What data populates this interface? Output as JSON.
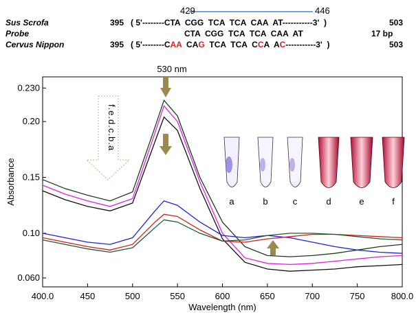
{
  "alignment": {
    "marker_start": 429,
    "marker_end": 446,
    "rows": [
      {
        "name": "Sus Scrofa",
        "start": 395,
        "sequence": [
          {
            "text": "( 5'--------CTA  CGG  TCA  TCA  CAA  AT-----------3'  )",
            "color": "#000000"
          }
        ],
        "end": 503
      },
      {
        "name": "Probe",
        "start": null,
        "sequence": [
          {
            "text": "CTA  CGG  TCA  TCA  CAA  AT",
            "color": "#000000"
          }
        ],
        "end": "17 bp"
      },
      {
        "name": "Cervus Nippon",
        "start": 395,
        "sequence": [
          {
            "text": "( 5'--------C",
            "color": "#000000"
          },
          {
            "text": "AA",
            "color": "#e0201c"
          },
          {
            "text": "  CA",
            "color": "#000000"
          },
          {
            "text": "G",
            "color": "#e0201c"
          },
          {
            "text": "  TCA  TCA  C",
            "color": "#000000"
          },
          {
            "text": "C",
            "color": "#e0201c"
          },
          {
            "text": "A  A",
            "color": "#000000"
          },
          {
            "text": "C",
            "color": "#e0201c"
          },
          {
            "text": "-----------3'  )",
            "color": "#000000"
          }
        ],
        "end": 503
      }
    ]
  },
  "chart_data": {
    "type": "line",
    "x_label": "Wavelength (nm)",
    "y_label": "Absorbance",
    "annotations": [
      "530 nm",
      "f.e.d.c.b.a"
    ],
    "tube_labels": [
      "a",
      "b",
      "c",
      "d",
      "e",
      "f"
    ],
    "x": [
      400,
      425,
      450,
      475,
      500,
      525,
      535,
      550,
      575,
      600,
      625,
      650,
      675,
      700,
      725,
      750,
      775,
      800
    ],
    "series": [
      {
        "color": "#1e3a1e",
        "values": [
          0.148,
          0.14,
          0.134,
          0.129,
          0.137,
          0.195,
          0.219,
          0.205,
          0.15,
          0.11,
          0.088,
          0.08,
          0.079,
          0.08,
          0.082,
          0.085,
          0.088,
          0.09
        ]
      },
      {
        "color": "#e020e0",
        "values": [
          0.143,
          0.135,
          0.129,
          0.124,
          0.131,
          0.19,
          0.214,
          0.2,
          0.146,
          0.1,
          0.078,
          0.073,
          0.072,
          0.073,
          0.075,
          0.077,
          0.079,
          0.08
        ]
      },
      {
        "color": "#111111",
        "values": [
          0.138,
          0.13,
          0.124,
          0.12,
          0.127,
          0.182,
          0.204,
          0.192,
          0.14,
          0.095,
          0.074,
          0.068,
          0.066,
          0.067,
          0.068,
          0.07,
          0.071,
          0.072
        ]
      },
      {
        "color": "#2020e0",
        "values": [
          0.1,
          0.096,
          0.092,
          0.09,
          0.096,
          0.12,
          0.129,
          0.125,
          0.11,
          0.098,
          0.096,
          0.098,
          0.096,
          0.092,
          0.088,
          0.085,
          0.083,
          0.082
        ]
      },
      {
        "color": "#d81c1c",
        "values": [
          0.096,
          0.092,
          0.088,
          0.085,
          0.09,
          0.11,
          0.117,
          0.115,
          0.103,
          0.093,
          0.092,
          0.095,
          0.097,
          0.099,
          0.099,
          0.098,
          0.097,
          0.096
        ]
      },
      {
        "color": "#1e5a2e",
        "values": [
          0.094,
          0.09,
          0.086,
          0.083,
          0.087,
          0.105,
          0.112,
          0.11,
          0.1,
          0.093,
          0.094,
          0.098,
          0.1,
          0.1,
          0.099,
          0.097,
          0.095,
          0.094
        ]
      }
    ],
    "xlim": [
      400,
      800
    ],
    "ylim": [
      0.052,
      0.24
    ],
    "xticks": [
      {
        "value": 400,
        "label": "400.0"
      },
      450,
      500,
      550,
      600,
      650,
      700,
      750,
      {
        "value": 800,
        "label": "800.0"
      }
    ],
    "yticks": [
      {
        "value": 0.06,
        "label": "0.060"
      },
      {
        "value": 0.1,
        "label": "0.10"
      },
      0.15,
      {
        "value": 0.2,
        "label": "0.20"
      },
      {
        "value": 0.23,
        "label": "0.230"
      }
    ]
  }
}
